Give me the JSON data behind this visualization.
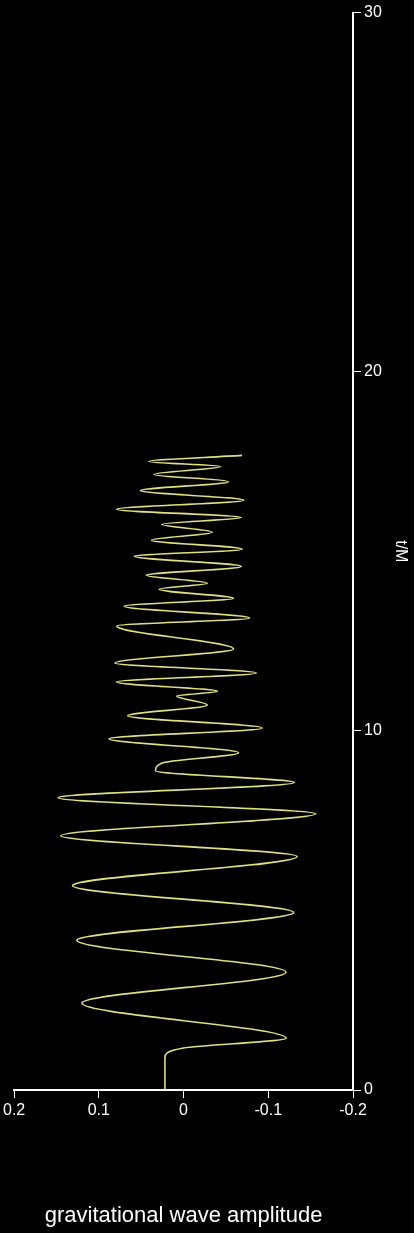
{
  "chart_data": {
    "type": "line",
    "xlabel": "gravitational wave amplitude",
    "ylabel": "t/M",
    "series": [
      {
        "color": "#e0e080",
        "x": [
          0.022,
          0.022,
          0.0,
          -0.121,
          0.12,
          -0.121,
          0.126,
          -0.13,
          0.131,
          -0.134,
          0.145,
          -0.156,
          0.148,
          -0.131,
          0.033,
          0.026,
          -0.065,
          0.088,
          -0.093,
          0.066,
          -0.028,
          0.008,
          -0.04,
          0.079,
          -0.086,
          0.081,
          -0.059,
          0.079,
          -0.078,
          0.07,
          -0.059,
          0.029,
          -0.028,
          0.044,
          -0.068,
          0.058,
          -0.069,
          0.038,
          -0.034,
          0.026,
          -0.068,
          0.079,
          -0.071,
          0.051,
          -0.053,
          0.035,
          -0.044,
          0.041,
          -0.069
        ],
        "values": [
          0,
          0.9,
          1.17,
          1.44,
          2.42,
          3.28,
          4.17,
          4.94,
          5.69,
          6.5,
          7.08,
          7.69,
          8.14,
          8.56,
          8.89,
          9.1,
          9.39,
          9.78,
          10.08,
          10.42,
          10.72,
          10.97,
          11.1,
          11.36,
          11.61,
          11.89,
          12.28,
          12.92,
          13.14,
          13.47,
          13.69,
          13.94,
          14.11,
          14.33,
          14.58,
          14.86,
          15.06,
          15.31,
          15.53,
          15.75,
          15.94,
          16.17,
          16.42,
          16.69,
          16.94,
          17.14,
          17.36,
          17.5,
          17.67
        ]
      }
    ],
    "xlim": [
      0.2,
      -0.2
    ],
    "xticks": [
      0.2,
      0.1,
      0,
      -0.1,
      -0.2
    ],
    "ylim": [
      0,
      30
    ],
    "yticks": [
      0,
      10,
      20,
      30
    ],
    "grid": false,
    "legend": false,
    "marker": "none",
    "line_style": "solid"
  }
}
